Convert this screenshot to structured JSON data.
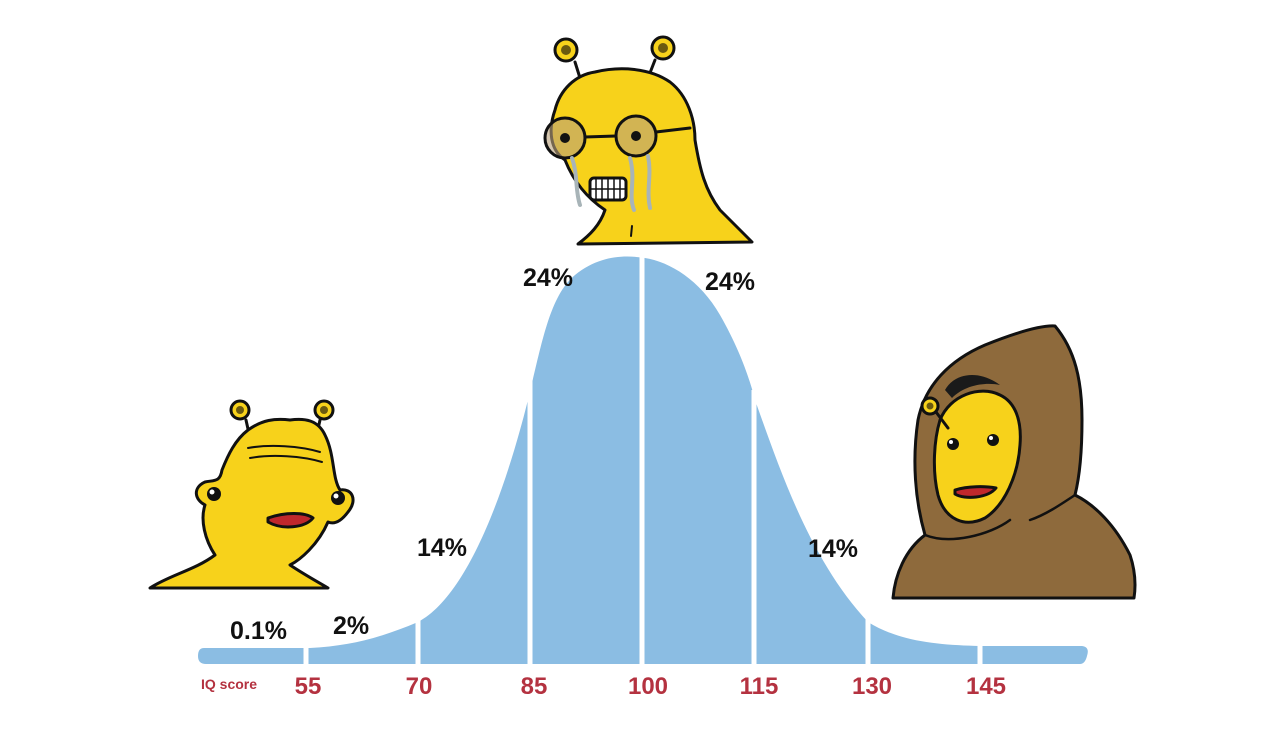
{
  "colors": {
    "curve_fill": "#8bbde3",
    "label_red": "#b43240",
    "slug_yellow": "#f7d21b",
    "hood_brown": "#8e6a3c",
    "mouth_red": "#c0282c",
    "outline": "#111111"
  },
  "axis": {
    "label": "IQ score",
    "ticks": [
      "55",
      "70",
      "85",
      "100",
      "115",
      "130",
      "145"
    ]
  },
  "segments": [
    {
      "label": "0.1%"
    },
    {
      "label": "2%"
    },
    {
      "label": "14%"
    },
    {
      "label": "24%"
    },
    {
      "label": "24%"
    },
    {
      "label": "14%"
    }
  ],
  "characters": {
    "left": "slug-creature-icon",
    "middle": "crying-slug-with-glasses-icon",
    "right": "hooded-slug-icon"
  }
}
